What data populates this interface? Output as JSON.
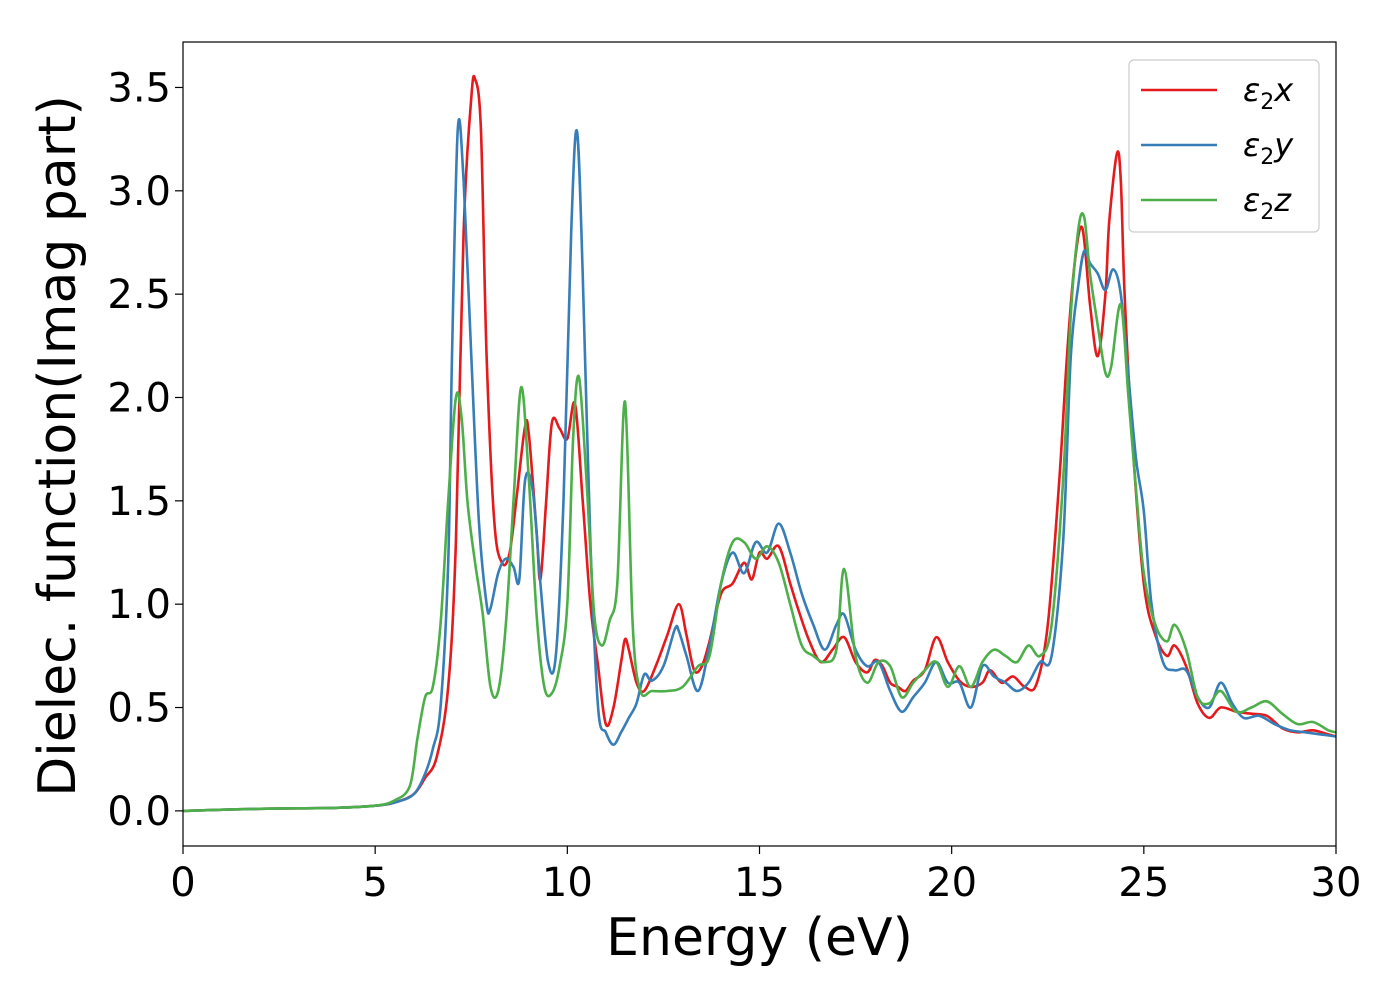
{
  "chart_data": {
    "type": "line",
    "xlabel": "Energy (eV)",
    "ylabel": "Dielec. function(Imag part)",
    "xlim": [
      0,
      30
    ],
    "ylim": [
      -0.17,
      3.72
    ],
    "xticks": [
      0,
      5,
      10,
      15,
      20,
      25,
      30
    ],
    "xtick_labels": [
      "0",
      "5",
      "10",
      "15",
      "20",
      "25",
      "30"
    ],
    "yticks": [
      0.0,
      0.5,
      1.0,
      1.5,
      2.0,
      2.5,
      3.0,
      3.5
    ],
    "ytick_labels": [
      "0.0",
      "0.5",
      "1.0",
      "1.5",
      "2.0",
      "2.5",
      "3.0",
      "3.5"
    ],
    "grid": false,
    "legend_position": "top-right",
    "series": [
      {
        "name": "ε2x",
        "legend_symbol": "ε",
        "legend_sub": "2",
        "legend_var": "x",
        "color": "#e41a1c",
        "x": [
          0,
          2,
          4,
          5,
          5.5,
          6,
          6.3,
          6.6,
          6.9,
          7.1,
          7.3,
          7.5,
          7.6,
          7.75,
          7.9,
          8.1,
          8.3,
          8.5,
          8.7,
          8.9,
          9.0,
          9.2,
          9.3,
          9.45,
          9.6,
          9.8,
          10.0,
          10.2,
          10.4,
          10.6,
          10.8,
          11.0,
          11.2,
          11.4,
          11.5,
          11.6,
          11.8,
          12.0,
          12.3,
          12.6,
          12.9,
          13.1,
          13.3,
          13.5,
          13.7,
          14.0,
          14.3,
          14.6,
          14.8,
          15.0,
          15.2,
          15.5,
          15.8,
          16.0,
          16.3,
          16.6,
          16.9,
          17.2,
          17.5,
          17.8,
          18.0,
          18.2,
          18.4,
          18.6,
          18.8,
          19.0,
          19.3,
          19.6,
          19.9,
          20.2,
          20.5,
          20.8,
          21.0,
          21.3,
          21.6,
          21.9,
          22.2,
          22.5,
          22.8,
          23.0,
          23.2,
          23.4,
          23.6,
          23.8,
          24.0,
          24.1,
          24.3,
          24.4,
          24.5,
          24.7,
          25.0,
          25.3,
          25.6,
          25.8,
          26.1,
          26.4,
          26.7,
          27.0,
          27.4,
          27.8,
          28.2,
          28.6,
          29.0,
          29.4,
          29.8,
          30
        ],
        "y": [
          0.0,
          0.01,
          0.015,
          0.025,
          0.04,
          0.08,
          0.16,
          0.26,
          0.6,
          1.3,
          2.8,
          3.45,
          3.54,
          3.3,
          2.2,
          1.4,
          1.2,
          1.25,
          1.55,
          1.86,
          1.82,
          1.35,
          1.12,
          1.5,
          1.88,
          1.85,
          1.8,
          1.97,
          1.5,
          1.0,
          0.7,
          0.42,
          0.5,
          0.72,
          0.83,
          0.78,
          0.62,
          0.58,
          0.7,
          0.85,
          1.0,
          0.85,
          0.68,
          0.7,
          0.82,
          1.05,
          1.1,
          1.2,
          1.12,
          1.25,
          1.22,
          1.28,
          1.1,
          0.98,
          0.82,
          0.72,
          0.78,
          0.84,
          0.72,
          0.67,
          0.73,
          0.7,
          0.62,
          0.6,
          0.58,
          0.63,
          0.68,
          0.84,
          0.72,
          0.63,
          0.6,
          0.62,
          0.68,
          0.62,
          0.65,
          0.6,
          0.61,
          0.9,
          1.6,
          2.2,
          2.65,
          2.82,
          2.45,
          2.2,
          2.5,
          2.85,
          3.18,
          3.05,
          2.5,
          1.8,
          1.1,
          0.85,
          0.75,
          0.8,
          0.7,
          0.52,
          0.45,
          0.5,
          0.48,
          0.47,
          0.46,
          0.4,
          0.38,
          0.39,
          0.37,
          0.36
        ]
      },
      {
        "name": "ε2y",
        "legend_symbol": "ε",
        "legend_sub": "2",
        "legend_var": "y",
        "color": "#377eb8",
        "x": [
          0,
          2,
          4,
          5,
          5.5,
          6,
          6.3,
          6.5,
          6.7,
          6.9,
          7.0,
          7.15,
          7.3,
          7.5,
          7.7,
          7.9,
          8.0,
          8.2,
          8.4,
          8.6,
          8.75,
          8.9,
          9.1,
          9.3,
          9.5,
          9.7,
          9.9,
          10.1,
          10.25,
          10.4,
          10.6,
          10.8,
          11.0,
          11.2,
          11.4,
          11.6,
          11.8,
          12.0,
          12.2,
          12.5,
          12.8,
          12.9,
          13.1,
          13.4,
          13.7,
          14.0,
          14.3,
          14.6,
          14.9,
          15.2,
          15.5,
          15.8,
          16.1,
          16.4,
          16.7,
          17.0,
          17.2,
          17.5,
          17.8,
          18.1,
          18.4,
          18.7,
          19.0,
          19.3,
          19.6,
          19.9,
          20.2,
          20.5,
          20.8,
          21.1,
          21.4,
          21.7,
          22.0,
          22.3,
          22.6,
          22.9,
          23.1,
          23.3,
          23.45,
          23.6,
          23.8,
          24.0,
          24.2,
          24.4,
          24.6,
          24.8,
          25.0,
          25.2,
          25.5,
          25.8,
          26.1,
          26.4,
          26.7,
          27.0,
          27.3,
          27.6,
          28.0,
          28.4,
          28.8,
          29.2,
          29.6,
          30
        ],
        "y": [
          0.0,
          0.01,
          0.015,
          0.025,
          0.04,
          0.08,
          0.18,
          0.3,
          0.5,
          1.2,
          2.2,
          3.3,
          3.05,
          2.2,
          1.4,
          1.0,
          0.98,
          1.15,
          1.22,
          1.18,
          1.12,
          1.6,
          1.55,
          1.1,
          0.72,
          0.75,
          1.5,
          2.8,
          3.29,
          2.6,
          1.3,
          0.5,
          0.38,
          0.32,
          0.38,
          0.45,
          0.52,
          0.66,
          0.63,
          0.7,
          0.88,
          0.87,
          0.75,
          0.58,
          0.8,
          1.1,
          1.25,
          1.15,
          1.3,
          1.25,
          1.39,
          1.25,
          1.05,
          0.9,
          0.78,
          0.9,
          0.95,
          0.78,
          0.7,
          0.72,
          0.58,
          0.48,
          0.55,
          0.62,
          0.72,
          0.62,
          0.62,
          0.5,
          0.7,
          0.65,
          0.62,
          0.58,
          0.62,
          0.72,
          0.75,
          1.3,
          2.2,
          2.55,
          2.71,
          2.65,
          2.6,
          2.52,
          2.62,
          2.5,
          2.1,
          1.7,
          1.45,
          1.0,
          0.72,
          0.68,
          0.68,
          0.55,
          0.5,
          0.62,
          0.52,
          0.45,
          0.46,
          0.42,
          0.39,
          0.38,
          0.37,
          0.36
        ]
      },
      {
        "name": "ε2z",
        "legend_symbol": "ε",
        "legend_sub": "2",
        "legend_var": "z",
        "color": "#4daf4a",
        "x": [
          0,
          2,
          4,
          5,
          5.5,
          5.9,
          6.1,
          6.3,
          6.5,
          6.7,
          6.9,
          7.1,
          7.25,
          7.4,
          7.6,
          7.8,
          8.0,
          8.2,
          8.4,
          8.6,
          8.8,
          9.0,
          9.2,
          9.4,
          9.6,
          9.8,
          10.0,
          10.15,
          10.3,
          10.5,
          10.7,
          10.9,
          11.1,
          11.3,
          11.5,
          11.7,
          11.9,
          12.2,
          12.6,
          13.0,
          13.4,
          13.7,
          14.0,
          14.3,
          14.6,
          14.9,
          15.2,
          15.5,
          15.8,
          16.1,
          16.4,
          16.7,
          17.0,
          17.2,
          17.5,
          17.8,
          18.1,
          18.4,
          18.7,
          19.0,
          19.3,
          19.6,
          19.9,
          20.2,
          20.5,
          20.8,
          21.1,
          21.4,
          21.7,
          22.0,
          22.3,
          22.6,
          22.9,
          23.1,
          23.3,
          23.45,
          23.6,
          23.8,
          24.0,
          24.15,
          24.4,
          24.6,
          24.8,
          25.0,
          25.3,
          25.6,
          25.8,
          26.1,
          26.4,
          26.7,
          27.0,
          27.4,
          27.8,
          28.2,
          28.6,
          29.0,
          29.4,
          29.8,
          30
        ],
        "y": [
          0.0,
          0.01,
          0.015,
          0.025,
          0.05,
          0.12,
          0.35,
          0.55,
          0.6,
          0.9,
          1.5,
          2.0,
          1.9,
          1.5,
          1.2,
          0.95,
          0.6,
          0.58,
          0.9,
          1.5,
          2.05,
          1.6,
          0.95,
          0.6,
          0.57,
          0.7,
          1.0,
          1.8,
          2.1,
          1.6,
          0.95,
          0.8,
          0.92,
          1.1,
          1.98,
          0.9,
          0.58,
          0.58,
          0.58,
          0.6,
          0.7,
          0.75,
          1.1,
          1.3,
          1.3,
          1.22,
          1.28,
          1.2,
          1.0,
          0.8,
          0.75,
          0.72,
          0.78,
          1.17,
          0.75,
          0.62,
          0.72,
          0.7,
          0.55,
          0.62,
          0.68,
          0.72,
          0.6,
          0.7,
          0.6,
          0.72,
          0.78,
          0.75,
          0.72,
          0.8,
          0.75,
          0.9,
          1.6,
          2.4,
          2.82,
          2.87,
          2.6,
          2.35,
          2.12,
          2.15,
          2.45,
          2.0,
          1.55,
          1.15,
          0.9,
          0.82,
          0.9,
          0.78,
          0.55,
          0.52,
          0.58,
          0.48,
          0.5,
          0.53,
          0.47,
          0.42,
          0.43,
          0.39,
          0.38
        ]
      }
    ]
  }
}
